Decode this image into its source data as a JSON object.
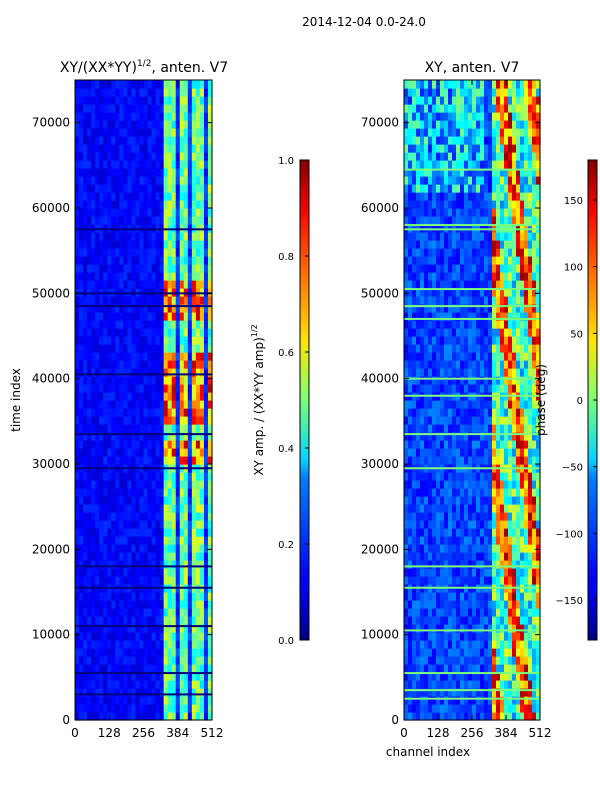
{
  "figure": {
    "suptitle": "2014-12-04 0.0-24.0",
    "channel_axis_label": "channel index",
    "time_axis_label": "time index"
  },
  "chart_data": [
    {
      "type": "heatmap",
      "title": "XY/(XX*YY)1/2, anten. V7",
      "title_main": "XY/(XX*YY)",
      "title_sup": "1/2",
      "title_rest": ", anten. V7",
      "xlabel": "",
      "ylabel": "time index",
      "xlim": [
        0,
        512
      ],
      "ylim": [
        0,
        75000
      ],
      "xticks": [
        0,
        128,
        256,
        384,
        512
      ],
      "yticks": [
        0,
        10000,
        20000,
        30000,
        40000,
        50000,
        60000,
        70000
      ],
      "colorbar": {
        "label_main": "XY amp. / (XX*YY amp)",
        "label_sup": "1/2",
        "range": [
          0.0,
          1.0
        ],
        "ticks": [
          "0.0",
          "0.2",
          "0.4",
          "0.6",
          "0.8",
          "1.0"
        ],
        "tick_values": [
          0.0,
          0.2,
          0.4,
          0.6,
          0.8,
          1.0
        ]
      },
      "active_channel_range": [
        330,
        512
      ],
      "bright_time_bands": [
        [
          30000,
          33000
        ],
        [
          34500,
          43000
        ],
        [
          47000,
          52000
        ]
      ],
      "bad_time_rows": [
        3000,
        5500,
        11000,
        15500,
        18000,
        29500,
        33500,
        40500,
        48500,
        50000,
        57500
      ]
    },
    {
      "type": "heatmap",
      "title": "XY, anten. V7",
      "xlabel": "channel index",
      "ylabel": "",
      "xlim": [
        0,
        512
      ],
      "ylim": [
        0,
        75000
      ],
      "xticks": [
        0,
        128,
        256,
        384,
        512
      ],
      "yticks": [
        0,
        10000,
        20000,
        30000,
        40000,
        50000,
        60000,
        70000
      ],
      "colorbar": {
        "label": "phase (deg)",
        "range": [
          -180,
          180
        ],
        "ticks": [
          "150",
          "100",
          "50",
          "0",
          "−50",
          "−100",
          "−150"
        ],
        "tick_values": [
          150,
          100,
          50,
          0,
          -50,
          -100,
          -150
        ]
      },
      "active_channel_range": [
        330,
        512
      ],
      "bad_time_rows": [
        2500,
        3500,
        5500,
        10500,
        15500,
        18000,
        29500,
        33500,
        38000,
        40000,
        47000,
        48500,
        50500,
        57500,
        58000,
        64500
      ]
    }
  ]
}
